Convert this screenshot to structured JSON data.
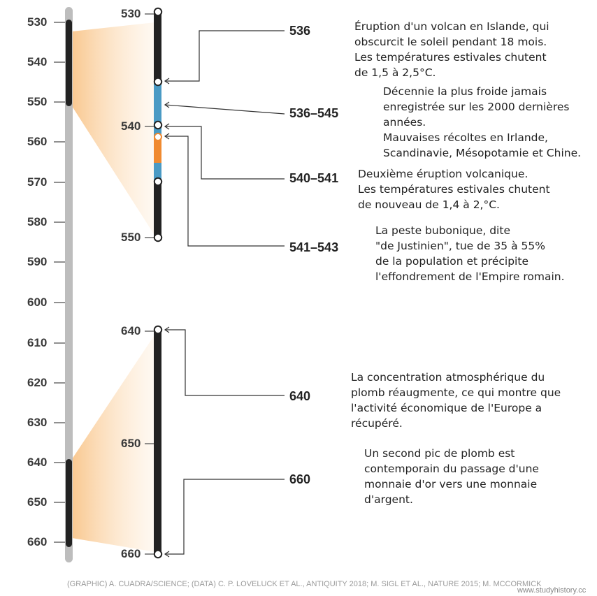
{
  "main_axis": {
    "ticks": [
      "530",
      "540",
      "550",
      "560",
      "570",
      "580",
      "590",
      "600",
      "610",
      "620",
      "630",
      "640",
      "650",
      "660"
    ]
  },
  "zoom_top": {
    "ticks": [
      "530",
      "540",
      "550"
    ]
  },
  "zoom_bottom": {
    "ticks": [
      "640",
      "650",
      "660"
    ]
  },
  "annotations": [
    {
      "label": "536",
      "text": "Éruption d'un volcan en Islande, qui\nobscurcit le soleil pendant 18 mois.\nLes températures estivales chutent\nde 1,5 à 2,5°C."
    },
    {
      "label": "536–545",
      "text": "Décennie la plus froide jamais\nenregistrée sur les 2000 dernières\n années.\nMauvaises récoltes en Irlande,\nScandinavie, Mésopotamie et Chine."
    },
    {
      "label": "540–541",
      "text": "Deuxième éruption volcanique.\nLes températures estivales chutent\nde nouveau de 1,4 à 2,°C."
    },
    {
      "label": "541–543",
      "text": "La peste bubonique, dite\n\"de Justinien\", tue de 35 à 55%\nde la population et précipite\nl'effondrement de l'Empire romain."
    },
    {
      "label": "640",
      "text": "La concentration atmosphérique du\nplomb réaugmente, ce qui montre que\nl'activité économique de l'Europe a\nrécupéré."
    },
    {
      "label": "660",
      "text": "Un second pic de plomb est\ncontemporain du passage d'une\nmonnaie d'or vers une monnaie\nd'argent."
    }
  ],
  "credit": "(GRAPHIC) A. CUADRA/SCIENCE; (DATA) C. P. LOVELUCK ET AL., ANTIQUITY 2018; M. SIGL ET AL., NATURE 2015; M. MCCORMICK",
  "watermark": "www.studyhistory.cc",
  "colors": {
    "axis_gray": "#bdbdbd",
    "bar_dark": "#222222",
    "cold_decade": "#4a9ac4",
    "plague": "#f08a30",
    "zoom_fill": "#fcd9ac"
  }
}
